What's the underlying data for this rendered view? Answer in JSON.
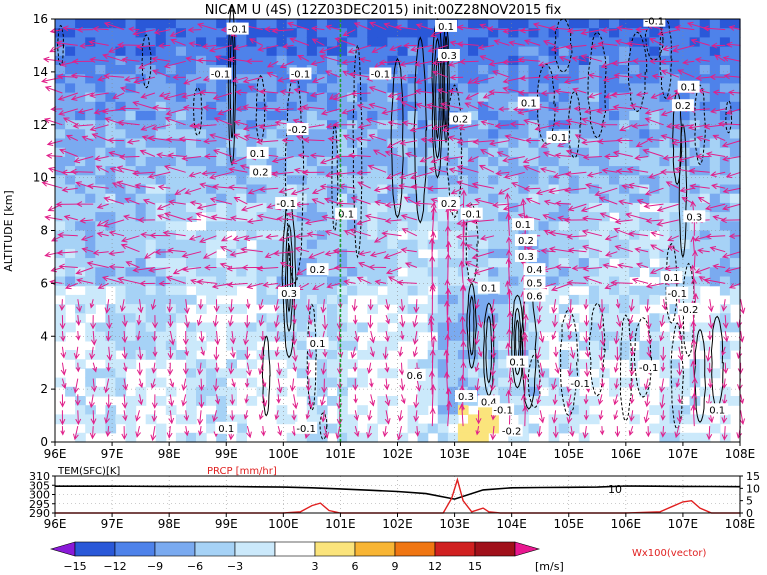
{
  "chart_data": [
    {
      "type": "heatmap",
      "title": "NICAM U (4S) (12Z03DEC2015) init:00Z28NOV2015 fix",
      "xlabel": "",
      "ylabel": "ALTITUDE [km]",
      "x_ticks": [
        "96E",
        "97E",
        "98E",
        "99E",
        "100E",
        "101E",
        "102E",
        "103E",
        "104E",
        "105E",
        "106E",
        "107E",
        "108E"
      ],
      "x_range": [
        96,
        108
      ],
      "y_ticks": [
        0,
        2,
        4,
        6,
        8,
        10,
        12,
        14,
        16
      ],
      "y_range": [
        0,
        16
      ],
      "marker_line_lon": 101,
      "contour_labels": [
        "0.1",
        "-0.1",
        "0.2",
        "0.3",
        "0.4",
        "0.5",
        "0.6",
        "-0.2"
      ],
      "wind_vector_label": "Wx100(vector)",
      "colors": {
        "vector": "#e0208a",
        "marker_line": "#21a02e"
      }
    },
    {
      "type": "line",
      "title": "",
      "left_label": "TEM(SFC)[K]",
      "right_label": "PRCP [mm/hr]",
      "left_ticks": [
        290,
        295,
        300,
        305,
        310
      ],
      "right_ticks": [
        0,
        5,
        10,
        15
      ],
      "temp_annotation": "10",
      "series": [
        {
          "name": "TEM(SFC)[K]",
          "color": "#000000",
          "x": [
            96,
            97,
            98,
            99,
            100,
            100.5,
            101,
            101.5,
            102,
            102.5,
            103,
            103.5,
            104,
            104.5,
            105,
            105.5,
            106,
            106.5,
            107,
            107.5,
            108
          ],
          "values": [
            304.5,
            304.5,
            304.4,
            304.3,
            304.0,
            303.6,
            303.0,
            302.3,
            301.6,
            300.5,
            297.5,
            302.5,
            303.6,
            303.8,
            303.9,
            304.0,
            304.6,
            304.5,
            304.4,
            304.3,
            304.2
          ]
        },
        {
          "name": "PRCP [mm/hr]",
          "color": "#e02020",
          "x": [
            96,
            97,
            98,
            99,
            100,
            100.3,
            100.5,
            100.65,
            100.8,
            101,
            102,
            102.8,
            102.95,
            103.05,
            103.15,
            103.3,
            103.5,
            103.6,
            103.8,
            104,
            105,
            106,
            106.6,
            106.8,
            107,
            107.15,
            107.3,
            107.5,
            108
          ],
          "values": [
            0,
            0,
            0,
            0,
            0,
            0.5,
            3.0,
            4.0,
            1.0,
            0,
            0,
            0,
            6.0,
            13.5,
            5.0,
            0.5,
            2.0,
            0.5,
            0,
            0,
            0,
            0,
            0.5,
            2.5,
            4.5,
            5.0,
            2.0,
            0,
            0
          ]
        }
      ]
    }
  ],
  "colorbar": {
    "ticks": [
      "−15",
      "−12",
      "−9",
      "−6",
      "−3",
      "3",
      "6",
      "9",
      "12",
      "15"
    ],
    "unit": "[m/s]",
    "colors": [
      "#8a1ad8",
      "#2a58d8",
      "#4e82ea",
      "#7aaaf0",
      "#a6d2f6",
      "#cbe9fb",
      "#ffffff",
      "#fbe47c",
      "#f8b534",
      "#f07612",
      "#d02020",
      "#a0101a",
      "#e81890"
    ]
  }
}
